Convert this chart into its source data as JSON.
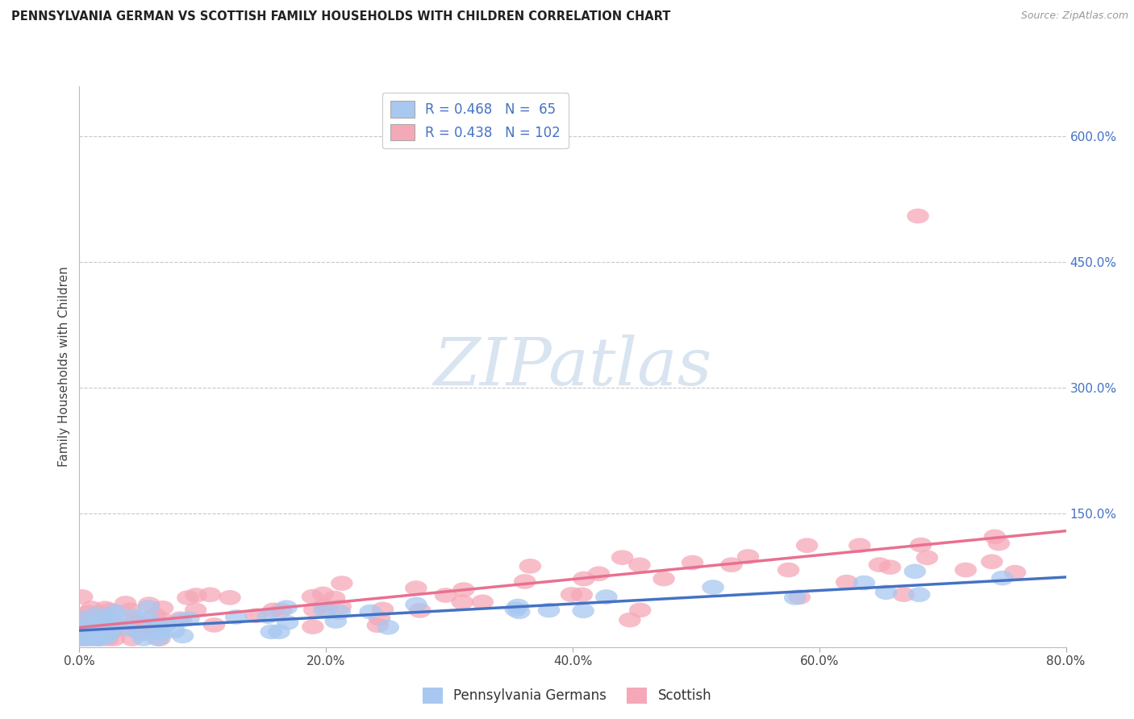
{
  "title": "PENNSYLVANIA GERMAN VS SCOTTISH FAMILY HOUSEHOLDS WITH CHILDREN CORRELATION CHART",
  "source": "Source: ZipAtlas.com",
  "ylabel": "Family Households with Children",
  "x_tick_vals": [
    0,
    20,
    40,
    60,
    80
  ],
  "y_tick_right_vals": [
    150,
    300,
    450,
    600
  ],
  "xlim": [
    0,
    80
  ],
  "ylim": [
    -10,
    660
  ],
  "legend_r1": "R = 0.468",
  "legend_n1": "N =  65",
  "legend_r2": "R = 0.438",
  "legend_n2": "N = 102",
  "color_blue": "#A8C8F0",
  "color_pink": "#F5A8B8",
  "color_blue_line": "#4472C4",
  "color_pink_line": "#E87090",
  "color_text_blue": "#4472C4",
  "watermark_color": "#D8E4F0",
  "bg_color": "#FFFFFF",
  "grid_color": "#C8C8C8",
  "title_fontsize": 10.5,
  "source_fontsize": 9,
  "tick_fontsize": 11
}
